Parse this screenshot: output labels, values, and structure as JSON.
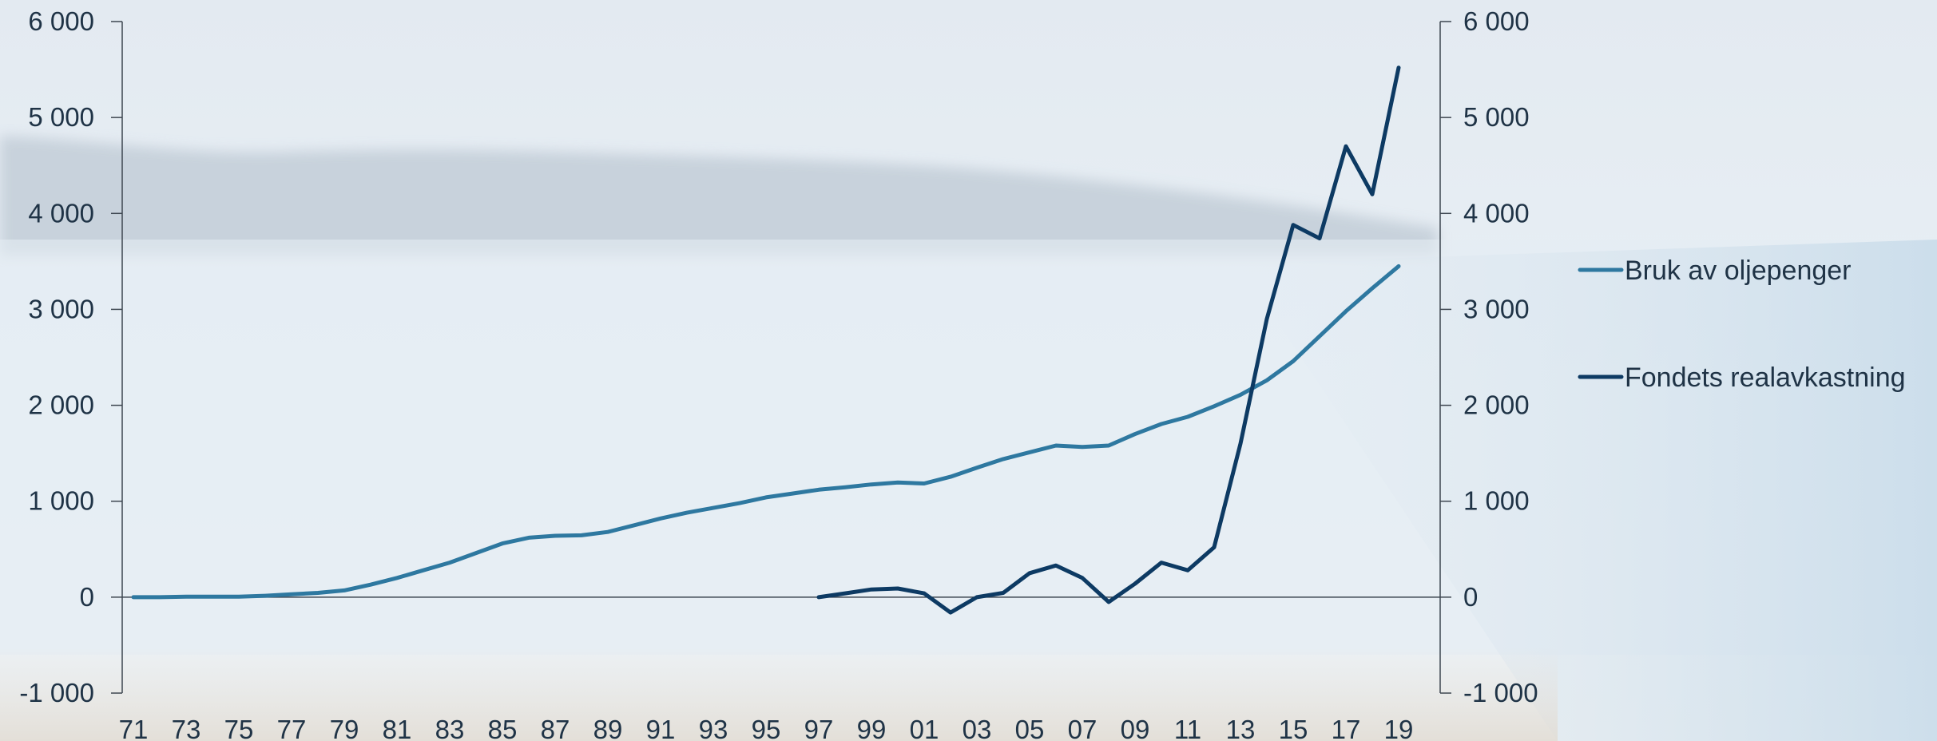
{
  "chart_data": {
    "type": "line",
    "x": [
      "71",
      "72",
      "73",
      "74",
      "75",
      "76",
      "77",
      "78",
      "79",
      "80",
      "81",
      "82",
      "83",
      "84",
      "85",
      "86",
      "87",
      "88",
      "89",
      "90",
      "91",
      "92",
      "93",
      "94",
      "95",
      "96",
      "97",
      "98",
      "99",
      "00",
      "01",
      "02",
      "03",
      "04",
      "05",
      "06",
      "07",
      "08",
      "09",
      "10",
      "11",
      "12",
      "13",
      "14",
      "15",
      "16",
      "17",
      "18",
      "19"
    ],
    "x_tick_labels": [
      "71",
      "73",
      "75",
      "77",
      "79",
      "81",
      "83",
      "85",
      "87",
      "89",
      "91",
      "93",
      "95",
      "97",
      "99",
      "01",
      "03",
      "05",
      "07",
      "09",
      "11",
      "13",
      "15",
      "17",
      "19"
    ],
    "y_tick_labels": [
      "6 000",
      "5 000",
      "4 000",
      "3 000",
      "2 000",
      "1 000",
      "0",
      "-1 000"
    ],
    "ylim": [
      -1000,
      6000
    ],
    "y_ticks": [
      -1000,
      0,
      1000,
      2000,
      3000,
      4000,
      5000,
      6000
    ],
    "series": [
      {
        "name": "Bruk av oljepenger",
        "color": "#2e78a0",
        "values": [
          0,
          0,
          5,
          5,
          5,
          15,
          30,
          45,
          70,
          130,
          200,
          280,
          360,
          460,
          560,
          620,
          640,
          645,
          680,
          750,
          820,
          880,
          930,
          980,
          1040,
          1080,
          1120,
          1145,
          1175,
          1195,
          1185,
          1255,
          1350,
          1440,
          1510,
          1580,
          1565,
          1580,
          1700,
          1805,
          1880,
          1990,
          2110,
          2260,
          2460,
          2720,
          2980,
          3220,
          3450
        ]
      },
      {
        "name": "Fondets realavkastning",
        "color": "#0d3a63",
        "values": [
          null,
          null,
          null,
          null,
          null,
          null,
          null,
          null,
          null,
          null,
          null,
          null,
          null,
          null,
          null,
          null,
          null,
          null,
          null,
          null,
          null,
          null,
          null,
          null,
          null,
          null,
          0,
          40,
          80,
          90,
          40,
          -160,
          0,
          45,
          250,
          330,
          200,
          -50,
          140,
          360,
          280,
          520,
          1600,
          2900,
          3880,
          3740,
          4700,
          4200,
          5520
        ]
      }
    ],
    "legend_position": "right",
    "grid": false
  }
}
